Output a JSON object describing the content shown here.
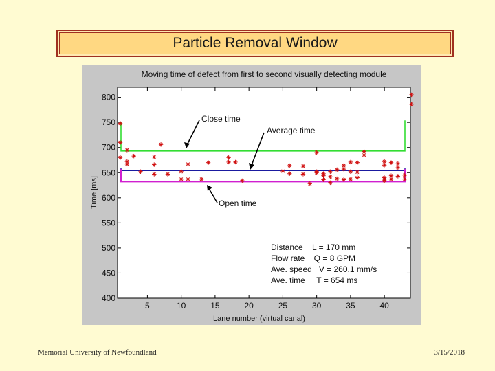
{
  "slide": {
    "title": "Particle Removal Window",
    "footer_left": "Memorial University of Newfoundland",
    "footer_right": "3/15/2018"
  },
  "colors": {
    "background": "#fffbd2",
    "title_box": "#ffd882",
    "close_line": "#33dd33",
    "average_line": "#1a1aa0",
    "open_line": "#d020d0",
    "markers": "#d01010"
  },
  "chart_data": {
    "type": "scatter",
    "title": "Moving time of defect from first to second visually detecting module",
    "xlabel": "Lane number (virtual canal)",
    "ylabel": "Time [ms]",
    "xlim": [
      1,
      44
    ],
    "ylim": [
      400,
      820
    ],
    "xticks": [
      5,
      10,
      15,
      20,
      25,
      30,
      35,
      40
    ],
    "yticks": [
      400,
      450,
      500,
      550,
      600,
      650,
      700,
      750,
      800
    ],
    "grid": false,
    "lines": [
      {
        "name": "Close time",
        "label": "Close time",
        "y": 693,
        "color": "#33dd33"
      },
      {
        "name": "Average time",
        "label": "Average time",
        "y": 654,
        "color": "#1a1aa0"
      },
      {
        "name": "Open time",
        "label": "Open time",
        "y": 632,
        "color": "#d020d0"
      }
    ],
    "points": [
      [
        1,
        710
      ],
      [
        1,
        680
      ],
      [
        1,
        748
      ],
      [
        2,
        695
      ],
      [
        2,
        672
      ],
      [
        2,
        667
      ],
      [
        3,
        683
      ],
      [
        4,
        652
      ],
      [
        6,
        681
      ],
      [
        6,
        666
      ],
      [
        6,
        647
      ],
      [
        7,
        706
      ],
      [
        8,
        647
      ],
      [
        10,
        652
      ],
      [
        10,
        637
      ],
      [
        11,
        637
      ],
      [
        11,
        667
      ],
      [
        13,
        637
      ],
      [
        14,
        670
      ],
      [
        17,
        680
      ],
      [
        17,
        671
      ],
      [
        18,
        671
      ],
      [
        19,
        634
      ],
      [
        25,
        653
      ],
      [
        26,
        648
      ],
      [
        26,
        664
      ],
      [
        28,
        647
      ],
      [
        28,
        663
      ],
      [
        29,
        628
      ],
      [
        30,
        650
      ],
      [
        30,
        652
      ],
      [
        30,
        690
      ],
      [
        31,
        648
      ],
      [
        31,
        644
      ],
      [
        31,
        636
      ],
      [
        32,
        652
      ],
      [
        32,
        630
      ],
      [
        32,
        642
      ],
      [
        33,
        656
      ],
      [
        33,
        638
      ],
      [
        34,
        657
      ],
      [
        34,
        664
      ],
      [
        34,
        636
      ],
      [
        35,
        671
      ],
      [
        35,
        652
      ],
      [
        35,
        637
      ],
      [
        36,
        640
      ],
      [
        36,
        670
      ],
      [
        36,
        651
      ],
      [
        37,
        692
      ],
      [
        37,
        685
      ],
      [
        40,
        672
      ],
      [
        40,
        665
      ],
      [
        40,
        640
      ],
      [
        40,
        637
      ],
      [
        40,
        634
      ],
      [
        41,
        670
      ],
      [
        41,
        644
      ],
      [
        41,
        637
      ],
      [
        42,
        668
      ],
      [
        42,
        660
      ],
      [
        42,
        643
      ],
      [
        43,
        637
      ],
      [
        43,
        645
      ],
      [
        44,
        805
      ],
      [
        44,
        786
      ]
    ],
    "annotations": [
      "Distance    L = 170 mm",
      "Flow rate    Q = 8 GPM",
      "Ave. speed   V = 260.1 mm/s",
      "Ave. time     T = 654 ms"
    ]
  }
}
